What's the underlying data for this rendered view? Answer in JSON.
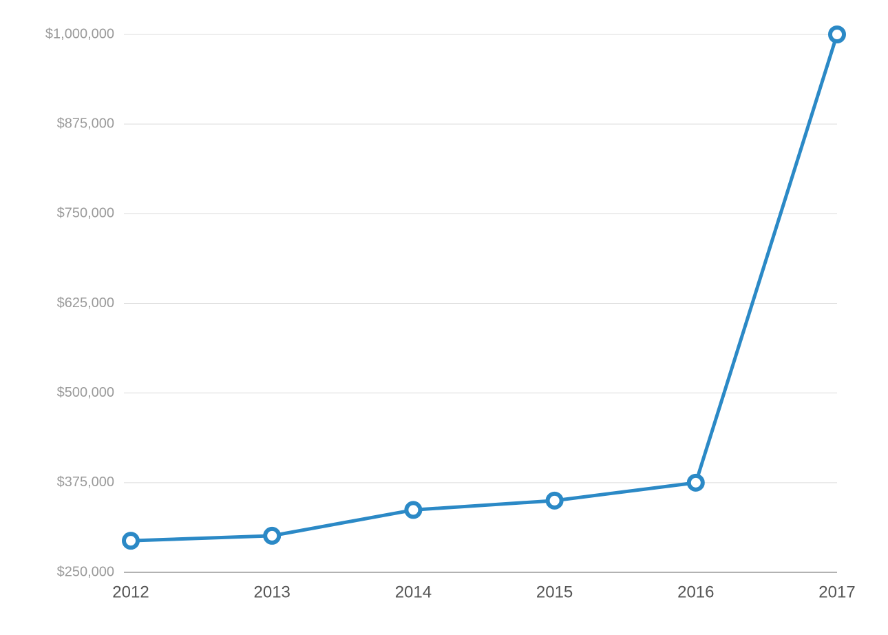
{
  "chart_data": {
    "type": "line",
    "categories": [
      "2012",
      "2013",
      "2014",
      "2015",
      "2016",
      "2017"
    ],
    "series": [
      {
        "color": "#2b89c6",
        "values": [
          294000,
          301000,
          337000,
          350000,
          375000,
          1000000
        ]
      }
    ],
    "ylim": [
      250000,
      1000000
    ],
    "yticks": [
      {
        "value": 250000,
        "label": "$250,000"
      },
      {
        "value": 375000,
        "label": "$375,000"
      },
      {
        "value": 500000,
        "label": "$500,000"
      },
      {
        "value": 625000,
        "label": "$625,000"
      },
      {
        "value": 750000,
        "label": "$750,000"
      },
      {
        "value": 875000,
        "label": "$875,000"
      },
      {
        "value": 1000000,
        "label": "$1,000,000"
      }
    ],
    "grid": true
  }
}
